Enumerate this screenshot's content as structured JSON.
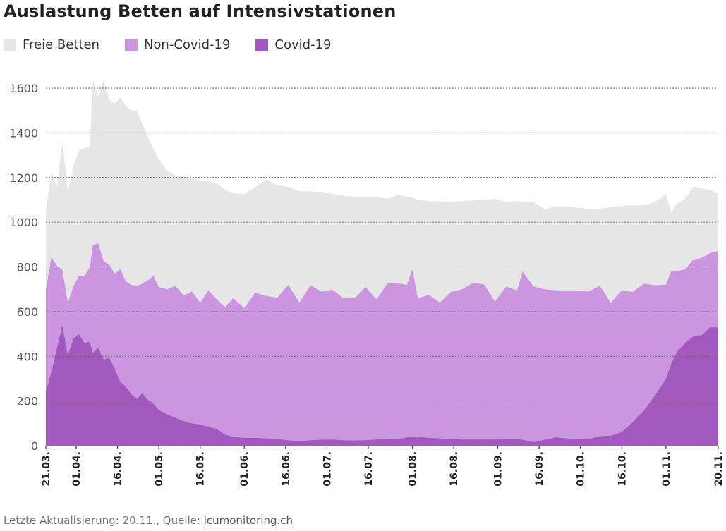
{
  "chart_data": {
    "type": "area",
    "stacked": true,
    "title": "Auslastung Betten auf Intensivstationen",
    "legend_position": "top-left",
    "grid": "horizontal dotted",
    "ylim": [
      0,
      1600
    ],
    "yticks": [
      0,
      200,
      400,
      600,
      800,
      1000,
      1200,
      1400,
      1600
    ],
    "xlim": [
      "2020-03-21",
      "2020-11-20"
    ],
    "xtick_labels": [
      "21.03.",
      "01.04.",
      "16.04.",
      "01.05.",
      "16.05.",
      "01.06.",
      "16.06.",
      "01.07.",
      "16.07.",
      "01.08.",
      "16.08.",
      "01.09.",
      "16.09.",
      "01.10.",
      "16.10.",
      "01.11.",
      "20.11."
    ],
    "xtick_dates": [
      "2020-03-21",
      "2020-04-01",
      "2020-04-16",
      "2020-05-01",
      "2020-05-16",
      "2020-06-01",
      "2020-06-16",
      "2020-07-01",
      "2020-07-16",
      "2020-08-01",
      "2020-08-16",
      "2020-09-01",
      "2020-09-16",
      "2020-10-01",
      "2020-10-16",
      "2020-11-01",
      "2020-11-20"
    ],
    "x": [
      "2020-03-21",
      "2020-03-23",
      "2020-03-25",
      "2020-03-27",
      "2020-03-29",
      "2020-03-31",
      "2020-04-02",
      "2020-04-04",
      "2020-04-06",
      "2020-04-07",
      "2020-04-09",
      "2020-04-11",
      "2020-04-13",
      "2020-04-15",
      "2020-04-17",
      "2020-04-19",
      "2020-04-21",
      "2020-04-23",
      "2020-04-25",
      "2020-04-27",
      "2020-04-29",
      "2020-05-01",
      "2020-05-04",
      "2020-05-07",
      "2020-05-10",
      "2020-05-13",
      "2020-05-16",
      "2020-05-19",
      "2020-05-22",
      "2020-05-25",
      "2020-05-28",
      "2020-06-01",
      "2020-06-05",
      "2020-06-09",
      "2020-06-13",
      "2020-06-17",
      "2020-06-21",
      "2020-06-25",
      "2020-06-29",
      "2020-07-03",
      "2020-07-07",
      "2020-07-11",
      "2020-07-15",
      "2020-07-19",
      "2020-07-23",
      "2020-07-27",
      "2020-07-30",
      "2020-08-01",
      "2020-08-03",
      "2020-08-07",
      "2020-08-11",
      "2020-08-15",
      "2020-08-19",
      "2020-08-23",
      "2020-08-27",
      "2020-08-31",
      "2020-09-04",
      "2020-09-08",
      "2020-09-10",
      "2020-09-14",
      "2020-09-18",
      "2020-09-22",
      "2020-09-26",
      "2020-09-30",
      "2020-10-04",
      "2020-10-08",
      "2020-10-12",
      "2020-10-16",
      "2020-10-20",
      "2020-10-24",
      "2020-10-28",
      "2020-11-01",
      "2020-11-03",
      "2020-11-05",
      "2020-11-08",
      "2020-11-11",
      "2020-11-14",
      "2020-11-17",
      "2020-11-20"
    ],
    "series": [
      {
        "name": "Covid-19",
        "color": "#a259bd",
        "values": [
          244,
          330,
          437,
          540,
          405,
          480,
          500,
          460,
          465,
          415,
          440,
          385,
          395,
          345,
          285,
          265,
          230,
          210,
          235,
          205,
          190,
          160,
          140,
          125,
          110,
          100,
          95,
          85,
          75,
          50,
          40,
          35,
          35,
          33,
          30,
          25,
          20,
          25,
          27,
          28,
          25,
          24,
          25,
          28,
          30,
          30,
          38,
          42,
          40,
          35,
          33,
          30,
          28,
          28,
          28,
          28,
          29,
          29,
          27,
          16,
          27,
          37,
          33,
          29,
          30,
          43,
          45,
          62,
          106,
          158,
          225,
          300,
          370,
          420,
          460,
          490,
          495,
          530,
          530
        ]
      },
      {
        "name": "Non-Covid-19",
        "color": "#cc95e0",
        "values": [
          453,
          515,
          368,
          250,
          235,
          234,
          260,
          300,
          335,
          484,
          465,
          440,
          415,
          425,
          505,
          470,
          490,
          505,
          490,
          535,
          570,
          550,
          560,
          590,
          562,
          590,
          545,
          610,
          580,
          570,
          620,
          581,
          650,
          637,
          632,
          695,
          620,
          693,
          663,
          670,
          635,
          636,
          685,
          627,
          697,
          695,
          682,
          748,
          620,
          640,
          607,
          658,
          672,
          700,
          694,
          617,
          683,
          666,
          753,
          696,
          673,
          658,
          662,
          666,
          660,
          673,
          595,
          633,
          582,
          567,
          493,
          420,
          413,
          360,
          330,
          343,
          345,
          332,
          342
        ]
      },
      {
        "name": "Freie Betten",
        "color": "#e6e6e6",
        "values": [
          344,
          380,
          355,
          570,
          500,
          536,
          560,
          570,
          540,
          741,
          655,
          815,
          740,
          760,
          770,
          785,
          780,
          785,
          715,
          640,
          570,
          570,
          530,
          495,
          530,
          505,
          548,
          488,
          520,
          525,
          470,
          510,
          473,
          520,
          503,
          438,
          499,
          420,
          445,
          430,
          458,
          455,
          401,
          457,
          379,
          397,
          393,
          320,
          440,
          420,
          453,
          404,
          394,
          370,
          378,
          460,
          378,
          400,
          313,
          378,
          358,
          376,
          376,
          370,
          370,
          344,
          428,
          377,
          387,
          351,
          372,
          405,
          257,
          305,
          315,
          327,
          310,
          283,
          258
        ]
      }
    ]
  },
  "legend": [
    {
      "label": "Freie Betten",
      "color": "#e6e6e6"
    },
    {
      "label": "Non-Covid-19",
      "color": "#cc95e0"
    },
    {
      "label": "Covid-19",
      "color": "#a259bd"
    }
  ],
  "footer": {
    "text": "Letzte Aktualisierung: 20.11., Quelle: ",
    "link": "icumonitoring.ch"
  }
}
